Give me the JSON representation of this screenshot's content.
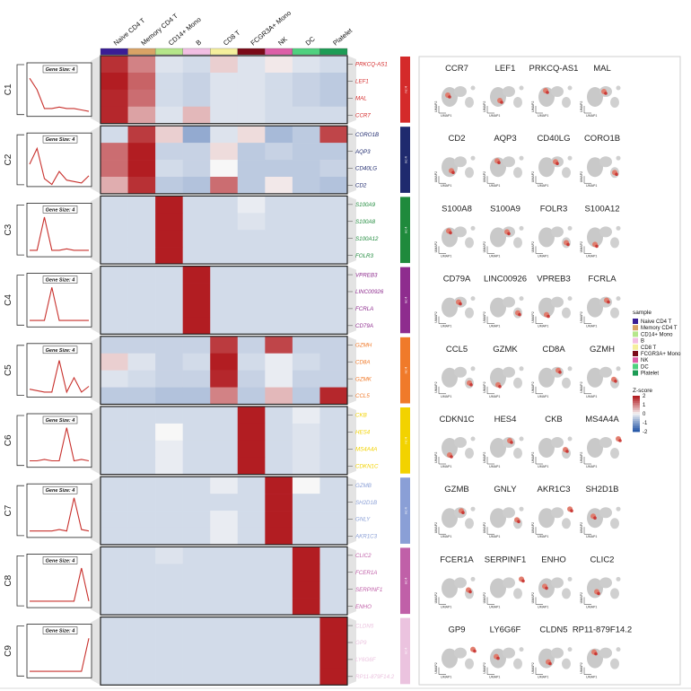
{
  "chart_data": {
    "type": "heatmap",
    "samples": [
      "Naive CD4 T",
      "Memory CD4 T",
      "CD14+ Mono",
      "B",
      "CD8 T",
      "FCGR3A+ Mono",
      "NK",
      "DC",
      "Platelet"
    ],
    "sample_colors": [
      "#3a1d96",
      "#d9a366",
      "#b5e68a",
      "#f2bfe3",
      "#f5ef9c",
      "#7a0a18",
      "#dd5ea7",
      "#4fd17f",
      "#1d9c55"
    ],
    "legend": {
      "sample_title": "sample",
      "zscore_title": "Z-score",
      "zscore_ticks": [
        "2",
        "1",
        "0",
        "-1",
        "-2"
      ],
      "color_scale": [
        "#2a5aa8",
        "#f7f7f7",
        "#b21d22"
      ],
      "position": "right"
    },
    "clusters": [
      {
        "name": "C1",
        "color": "#d42a2a",
        "bar_text": "nc:4",
        "gene_size": "Gene Size: 4",
        "genes": [
          "PRKCQ-AS1",
          "LEF1",
          "MAL",
          "CCR7"
        ],
        "values": [
          [
            1.8,
            1.0,
            -0.2,
            -0.3,
            0.3,
            -0.2,
            0.1,
            -0.2,
            -0.3
          ],
          [
            2.0,
            1.3,
            -0.3,
            -0.4,
            -0.2,
            -0.2,
            -0.3,
            -0.4,
            -0.5
          ],
          [
            1.9,
            1.2,
            -0.3,
            -0.4,
            -0.2,
            -0.2,
            -0.3,
            -0.4,
            -0.5
          ],
          [
            1.9,
            0.7,
            -0.2,
            0.5,
            -0.2,
            -0.2,
            -0.3,
            -0.3,
            -0.3
          ]
        ],
        "profile": [
          1.9,
          1.1,
          -0.2,
          -0.2,
          -0.1,
          -0.2,
          -0.2,
          -0.3,
          -0.4
        ],
        "umaps": [
          "CCR7",
          "LEF1",
          "PRKCQ-AS1",
          "MAL"
        ]
      },
      {
        "name": "C2",
        "color": "#1f2a6e",
        "bar_text": "nc:4",
        "gene_size": "Gene Size: 4",
        "genes": [
          "CORO1B",
          "AQP3",
          "CD40LG",
          "CD2"
        ],
        "values": [
          [
            -0.3,
            1.7,
            0.3,
            -0.9,
            -0.2,
            0.2,
            -0.7,
            -0.5,
            1.6
          ],
          [
            1.2,
            2.0,
            -0.4,
            -0.4,
            0.2,
            -0.5,
            -0.4,
            -0.5,
            -0.5
          ],
          [
            1.2,
            2.0,
            -0.3,
            -0.4,
            0.0,
            -0.5,
            -0.5,
            -0.5,
            -0.4
          ],
          [
            0.6,
            1.8,
            -0.5,
            -0.6,
            1.2,
            -0.5,
            0.1,
            -0.5,
            -0.6
          ]
        ],
        "profile": [
          0.8,
          1.9,
          -0.2,
          -0.6,
          0.3,
          -0.3,
          -0.4,
          -0.5,
          0.0
        ],
        "umaps": [
          "CD2",
          "AQP3",
          "CD40LG",
          "CORO1B"
        ]
      },
      {
        "name": "C3",
        "color": "#1f8a3c",
        "bar_text": "nc:4",
        "gene_size": "Gene Size: 4",
        "genes": [
          "S100A9",
          "S100A8",
          "S100A12",
          "FOLR3"
        ],
        "values": [
          [
            -0.3,
            -0.3,
            2.0,
            -0.3,
            -0.3,
            -0.1,
            -0.3,
            -0.3,
            -0.3
          ],
          [
            -0.3,
            -0.3,
            2.0,
            -0.3,
            -0.3,
            -0.2,
            -0.3,
            -0.3,
            -0.3
          ],
          [
            -0.3,
            -0.3,
            2.0,
            -0.3,
            -0.3,
            -0.3,
            -0.3,
            -0.3,
            -0.3
          ],
          [
            -0.3,
            -0.3,
            2.0,
            -0.3,
            -0.3,
            -0.3,
            -0.3,
            -0.3,
            -0.3
          ]
        ],
        "profile": [
          -0.3,
          -0.3,
          2.0,
          -0.3,
          -0.3,
          -0.2,
          -0.3,
          -0.3,
          -0.3
        ],
        "umaps": [
          "S100A8",
          "S100A9",
          "FOLR3",
          "S100A12"
        ]
      },
      {
        "name": "C4",
        "color": "#8e2c8e",
        "bar_text": "nc:4",
        "gene_size": "Gene Size: 4",
        "genes": [
          "VPREB3",
          "LINC00926",
          "FCRLA",
          "CD79A"
        ],
        "values": [
          [
            -0.3,
            -0.3,
            -0.3,
            2.0,
            -0.3,
            -0.3,
            -0.3,
            -0.3,
            -0.3
          ],
          [
            -0.3,
            -0.3,
            -0.3,
            2.0,
            -0.3,
            -0.3,
            -0.3,
            -0.3,
            -0.3
          ],
          [
            -0.3,
            -0.3,
            -0.3,
            2.0,
            -0.3,
            -0.3,
            -0.3,
            -0.3,
            -0.3
          ],
          [
            -0.3,
            -0.3,
            -0.3,
            2.0,
            -0.3,
            -0.3,
            -0.3,
            -0.3,
            -0.3
          ]
        ],
        "profile": [
          -0.3,
          -0.3,
          -0.3,
          2.0,
          -0.3,
          -0.3,
          -0.3,
          -0.3,
          -0.3
        ],
        "umaps": [
          "CD79A",
          "LINC00926",
          "VPREB3",
          "FCRLA"
        ]
      },
      {
        "name": "C5",
        "color": "#f07a2a",
        "bar_text": "nc:4",
        "gene_size": "Gene Size: 4",
        "genes": [
          "GZMH",
          "CD8A",
          "GZMK",
          "CCL5"
        ],
        "values": [
          [
            -0.4,
            -0.4,
            -0.4,
            -0.4,
            1.7,
            -0.4,
            1.6,
            -0.4,
            -0.4
          ],
          [
            0.3,
            -0.2,
            -0.4,
            -0.3,
            2.0,
            -0.3,
            -0.1,
            -0.3,
            -0.4
          ],
          [
            -0.2,
            -0.3,
            -0.4,
            -0.4,
            1.9,
            -0.4,
            -0.1,
            -0.4,
            -0.4
          ],
          [
            -0.5,
            -0.5,
            -0.6,
            -0.6,
            1.0,
            -0.5,
            0.5,
            -0.5,
            1.9
          ]
        ],
        "profile": [
          -0.2,
          -0.3,
          -0.4,
          -0.4,
          1.8,
          -0.4,
          0.6,
          -0.4,
          0.0
        ],
        "umaps": [
          "CCL5",
          "GZMK",
          "CD8A",
          "GZMH"
        ]
      },
      {
        "name": "C6",
        "color": "#f2d200",
        "bar_text": "nc:4",
        "gene_size": "Gene Size: 4",
        "genes": [
          "CKB",
          "HES4",
          "MS4A4A",
          "CDKN1C"
        ],
        "values": [
          [
            -0.3,
            -0.3,
            -0.3,
            -0.3,
            -0.3,
            2.0,
            -0.3,
            -0.1,
            -0.3
          ],
          [
            -0.3,
            -0.3,
            0.0,
            -0.3,
            -0.3,
            2.0,
            -0.3,
            -0.2,
            -0.3
          ],
          [
            -0.3,
            -0.3,
            -0.1,
            -0.3,
            -0.3,
            2.0,
            -0.3,
            -0.2,
            -0.3
          ],
          [
            -0.3,
            -0.3,
            -0.1,
            -0.3,
            -0.3,
            2.0,
            -0.3,
            -0.2,
            -0.3
          ]
        ],
        "profile": [
          -0.3,
          -0.3,
          -0.2,
          -0.3,
          -0.3,
          2.0,
          -0.3,
          -0.2,
          -0.3
        ],
        "umaps": [
          "CDKN1C",
          "HES4",
          "CKB",
          "MS4A4A"
        ]
      },
      {
        "name": "C7",
        "color": "#8a9fd6",
        "bar_text": "nc:4",
        "gene_size": "Gene Size: 4",
        "genes": [
          "GZMB",
          "SH2D1B",
          "GNLY",
          "AKR1C3"
        ],
        "values": [
          [
            -0.3,
            -0.3,
            -0.3,
            -0.3,
            -0.1,
            -0.3,
            2.0,
            0.0,
            -0.3
          ],
          [
            -0.3,
            -0.3,
            -0.3,
            -0.3,
            -0.3,
            -0.3,
            2.0,
            -0.3,
            -0.3
          ],
          [
            -0.3,
            -0.3,
            -0.3,
            -0.3,
            -0.1,
            -0.3,
            2.0,
            -0.3,
            -0.3
          ],
          [
            -0.3,
            -0.3,
            -0.3,
            -0.3,
            -0.1,
            -0.3,
            2.0,
            -0.3,
            -0.3
          ]
        ],
        "profile": [
          -0.3,
          -0.3,
          -0.3,
          -0.3,
          -0.2,
          -0.3,
          2.0,
          -0.2,
          -0.3
        ],
        "umaps": [
          "GZMB",
          "GNLY",
          "AKR1C3",
          "SH2D1B"
        ]
      },
      {
        "name": "C8",
        "color": "#c060a8",
        "bar_text": "nc:4",
        "gene_size": "Gene Size: 4",
        "genes": [
          "CLIC2",
          "FCER1A",
          "SERPINF1",
          "ENHO"
        ],
        "values": [
          [
            -0.3,
            -0.3,
            -0.2,
            -0.3,
            -0.3,
            -0.3,
            -0.3,
            2.0,
            -0.3
          ],
          [
            -0.3,
            -0.3,
            -0.3,
            -0.3,
            -0.3,
            -0.3,
            -0.3,
            2.0,
            -0.3
          ],
          [
            -0.3,
            -0.3,
            -0.3,
            -0.3,
            -0.3,
            -0.3,
            -0.3,
            2.0,
            -0.3
          ],
          [
            -0.3,
            -0.3,
            -0.3,
            -0.3,
            -0.3,
            -0.3,
            -0.3,
            2.0,
            -0.3
          ]
        ],
        "profile": [
          -0.3,
          -0.3,
          -0.3,
          -0.3,
          -0.3,
          -0.3,
          -0.3,
          2.0,
          -0.3
        ],
        "umaps": [
          "FCER1A",
          "SERPINF1",
          "ENHO",
          "CLIC2"
        ]
      },
      {
        "name": "C9",
        "color": "#ebc3df",
        "bar_text": "nc:4",
        "gene_size": "Gene Size: 4",
        "genes": [
          "CLDN5",
          "GP9",
          "LY6G6F",
          "RP11-879F14.2"
        ],
        "values": [
          [
            -0.3,
            -0.3,
            -0.3,
            -0.3,
            -0.3,
            -0.3,
            -0.3,
            -0.3,
            2.0
          ],
          [
            -0.3,
            -0.3,
            -0.3,
            -0.3,
            -0.3,
            -0.3,
            -0.3,
            -0.3,
            2.0
          ],
          [
            -0.3,
            -0.3,
            -0.3,
            -0.3,
            -0.3,
            -0.3,
            -0.3,
            -0.3,
            2.0
          ],
          [
            -0.3,
            -0.3,
            -0.3,
            -0.3,
            -0.3,
            -0.3,
            -0.3,
            -0.3,
            2.0
          ]
        ],
        "profile": [
          -0.3,
          -0.3,
          -0.3,
          -0.3,
          -0.3,
          -0.3,
          -0.3,
          -0.3,
          2.0
        ],
        "umaps": [
          "GP9",
          "LY6G6F",
          "CLDN5",
          "RP11-879F14.2"
        ]
      }
    ],
    "umap_axis": {
      "x": "UMAP1",
      "y": "UMAP2"
    }
  }
}
